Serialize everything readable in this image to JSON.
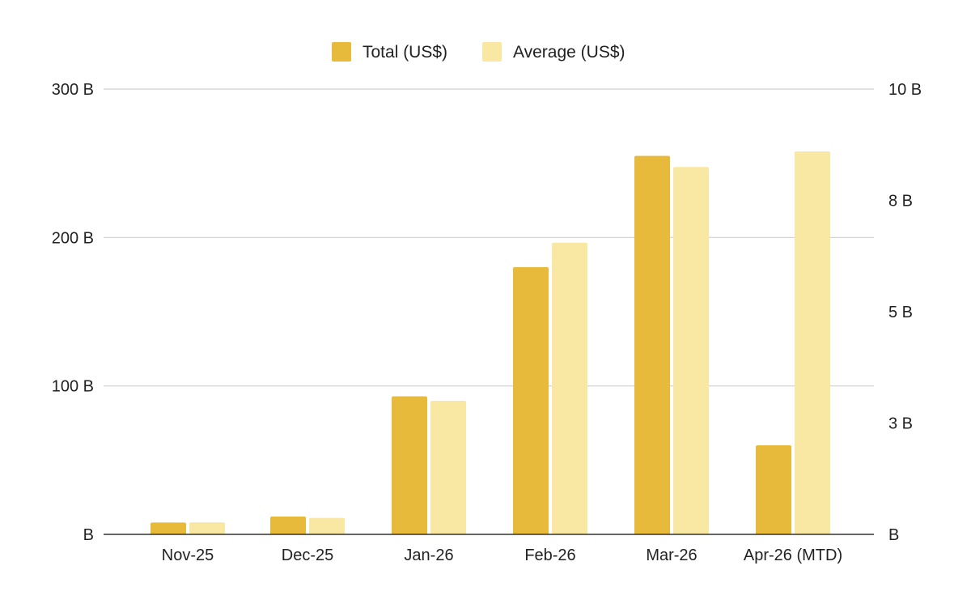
{
  "chart_data": {
    "type": "bar",
    "categories": [
      "Nov-25",
      "Dec-25",
      "Jan-26",
      "Feb-26",
      "Mar-26",
      "Apr-26 (MTD)"
    ],
    "series": [
      {
        "name": "Total (US$)",
        "axis": "left",
        "color": "#E8BA3C",
        "values": [
          8,
          12,
          93,
          180,
          255,
          60
        ]
      },
      {
        "name": "Average (US$)",
        "axis": "right",
        "color": "#F9E7A4",
        "values": [
          0.27,
          0.37,
          3.0,
          6.55,
          8.25,
          8.6
        ]
      }
    ],
    "y_left": {
      "ylim": [
        0,
        300
      ],
      "ticks": [
        0,
        100,
        200,
        300
      ],
      "tick_labels": [
        "B",
        "100 B",
        "200 B",
        "300 B"
      ]
    },
    "y_right": {
      "ylim": [
        0,
        10
      ],
      "ticks": [
        0,
        2.5,
        5,
        7.5,
        10
      ],
      "tick_labels": [
        "B",
        "3 B",
        "5 B",
        "8 B",
        "10 B"
      ]
    },
    "legend": {
      "position": "top-center"
    },
    "grid": true
  }
}
